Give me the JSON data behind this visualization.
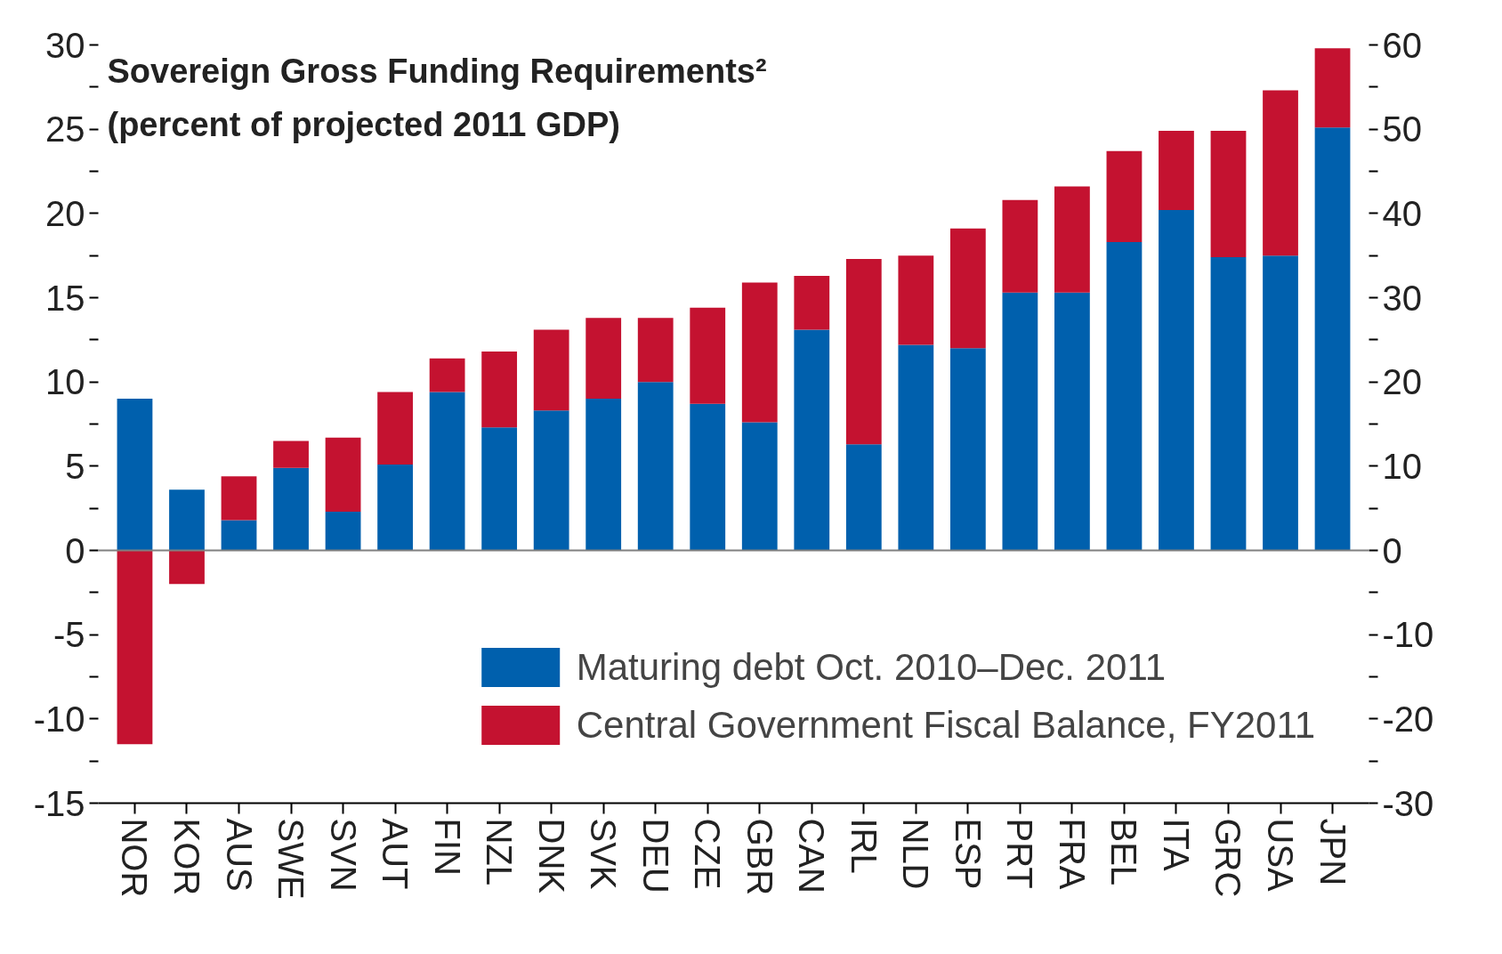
{
  "chart_data": {
    "type": "bar",
    "stacked": true,
    "title": "Sovereign Gross Funding Requirements²",
    "subtitle": "(percent of projected 2011 GDP)",
    "categories": [
      "NOR",
      "KOR",
      "AUS",
      "SWE",
      "SVN",
      "AUT",
      "FIN",
      "NZL",
      "DNK",
      "SVK",
      "DEU",
      "CZE",
      "GBR",
      "CAN",
      "IRL",
      "NLD",
      "ESP",
      "PRT",
      "FRA",
      "BEL",
      "ITA",
      "GRC",
      "USA",
      "JPN"
    ],
    "series": [
      {
        "name": "Maturing debt Oct. 2010–Dec. 2011",
        "color": "#0060ad",
        "values": [
          9.0,
          3.6,
          1.8,
          4.9,
          2.3,
          5.1,
          9.4,
          7.3,
          8.3,
          9.0,
          10.0,
          8.7,
          7.6,
          13.1,
          6.3,
          12.2,
          12.0,
          15.3,
          15.3,
          18.3,
          20.2,
          17.4,
          17.5,
          25.1
        ]
      },
      {
        "name": "Central Government Fiscal Balance, FY2011",
        "color": "#c41230",
        "values": [
          -11.5,
          -2.0,
          2.6,
          1.6,
          4.4,
          4.3,
          2.0,
          4.5,
          4.8,
          4.8,
          3.8,
          5.7,
          8.3,
          3.2,
          11.0,
          5.3,
          7.1,
          5.5,
          6.3,
          5.4,
          4.7,
          7.5,
          9.8,
          4.7
        ]
      }
    ],
    "ylim": [
      -15,
      30
    ],
    "yticks": [
      -15,
      {
        "value": -12.5,
        "label": null
      },
      -10,
      {
        "value": -7.5,
        "label": null
      },
      -5,
      {
        "value": -2.5,
        "label": null
      },
      0,
      {
        "value": 2.5,
        "label": null
      },
      5,
      {
        "value": 7.5,
        "label": null
      },
      10,
      {
        "value": 12.5,
        "label": null
      },
      15,
      {
        "value": 17.5,
        "label": null
      },
      20,
      {
        "value": 22.5,
        "label": null
      },
      25,
      {
        "value": 27.5,
        "label": null
      },
      30
    ],
    "y2lim": [
      -30,
      60
    ],
    "y2ticks": [
      -30,
      {
        "value": -25,
        "label": null
      },
      -20,
      {
        "value": -15,
        "label": null
      },
      -10,
      {
        "value": -5,
        "label": null
      },
      0,
      {
        "value": 5,
        "label": null
      },
      10,
      {
        "value": 15,
        "label": null
      },
      20,
      {
        "value": 25,
        "label": null
      },
      30,
      {
        "value": 35,
        "label": null
      },
      40,
      {
        "value": 45,
        "label": null
      },
      50,
      {
        "value": 55,
        "label": null
      },
      60
    ],
    "ref_lines": [
      {
        "axis": "y",
        "value": 0,
        "color": "#808080"
      }
    ],
    "grid": false,
    "legend": "bottom right"
  }
}
